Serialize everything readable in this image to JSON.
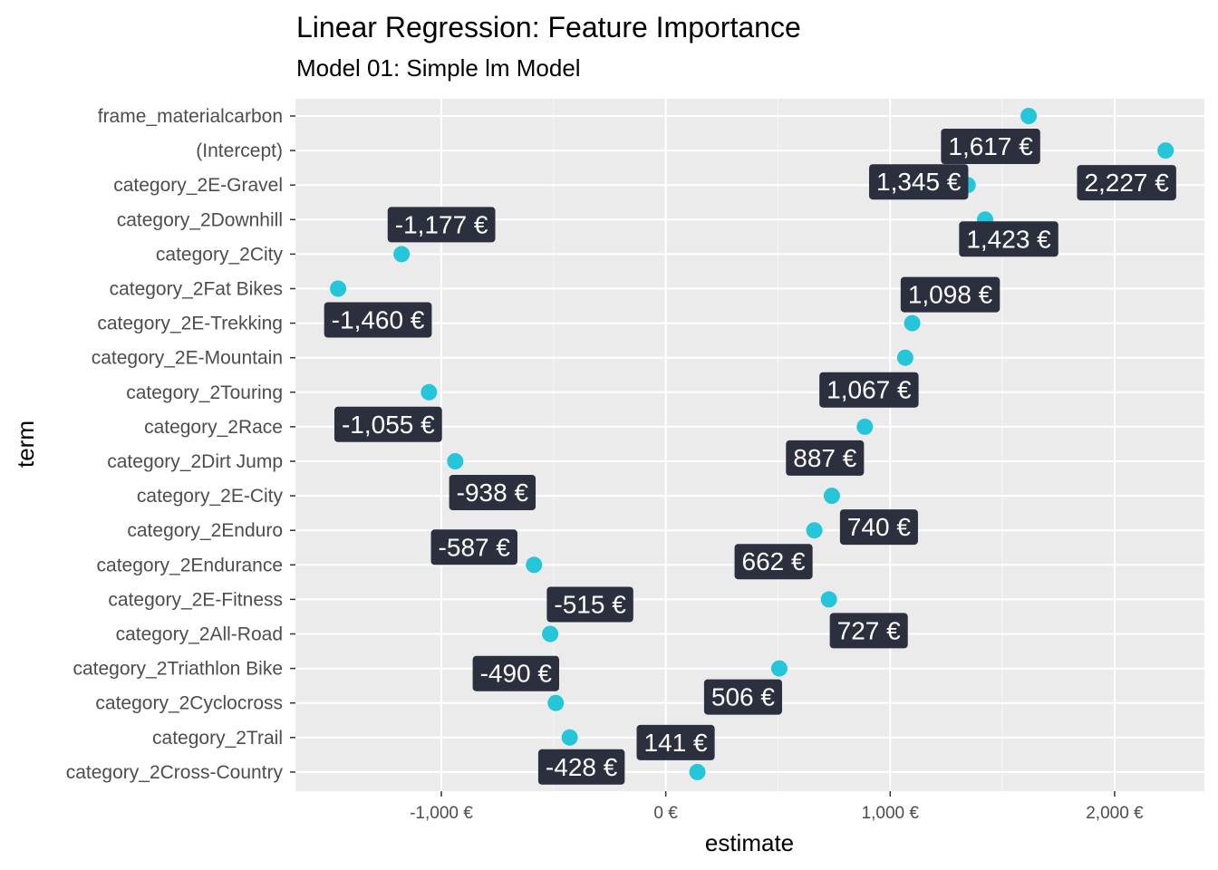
{
  "chart_data": {
    "type": "scatter",
    "title": "Linear Regression: Feature Importance",
    "subtitle": "Model 01: Simple lm Model",
    "xlabel": "estimate",
    "ylabel": "term",
    "xlim": [
      -1650,
      2400
    ],
    "x_ticks": [
      {
        "value": -1000,
        "label": "-1,000 €"
      },
      {
        "value": 0,
        "label": "0 €"
      },
      {
        "value": 1000,
        "label": "1,000 €"
      },
      {
        "value": 2000,
        "label": "2,000 €"
      }
    ],
    "grid": true,
    "point_color": "#26c6da",
    "label_bg": "#2b2f3e",
    "panel_bg": "#ebebeb",
    "points": [
      {
        "term": "frame_materialcarbon",
        "estimate": 1617,
        "label": "1,617 €"
      },
      {
        "term": "(Intercept)",
        "estimate": 2227,
        "label": "2,227 €"
      },
      {
        "term": "category_2E-Gravel",
        "estimate": 1345,
        "label": "1,345 €"
      },
      {
        "term": "category_2Downhill",
        "estimate": 1423,
        "label": "1,423 €"
      },
      {
        "term": "category_2City",
        "estimate": -1177,
        "label": "-1,177 €"
      },
      {
        "term": "category_2Fat Bikes",
        "estimate": -1460,
        "label": "-1,460 €"
      },
      {
        "term": "category_2E-Trekking",
        "estimate": 1098,
        "label": "1,098 €"
      },
      {
        "term": "category_2E-Mountain",
        "estimate": 1067,
        "label": "1,067 €"
      },
      {
        "term": "category_2Touring",
        "estimate": -1055,
        "label": "-1,055 €"
      },
      {
        "term": "category_2Race",
        "estimate": 887,
        "label": "887 €"
      },
      {
        "term": "category_2Dirt Jump",
        "estimate": -938,
        "label": "-938 €"
      },
      {
        "term": "category_2E-City",
        "estimate": 740,
        "label": "740 €"
      },
      {
        "term": "category_2Enduro",
        "estimate": 662,
        "label": "662 €"
      },
      {
        "term": "category_2Endurance",
        "estimate": -587,
        "label": "-587 €"
      },
      {
        "term": "category_2E-Fitness",
        "estimate": 727,
        "label": "727 €"
      },
      {
        "term": "category_2All-Road",
        "estimate": -515,
        "label": "-515 €"
      },
      {
        "term": "category_2Triathlon Bike",
        "estimate": 506,
        "label": "506 €"
      },
      {
        "term": "category_2Cyclocross",
        "estimate": -490,
        "label": "-490 €"
      },
      {
        "term": "category_2Trail",
        "estimate": -428,
        "label": "-428 €"
      },
      {
        "term": "category_2Cross-Country",
        "estimate": 141,
        "label": "141 €"
      }
    ]
  }
}
